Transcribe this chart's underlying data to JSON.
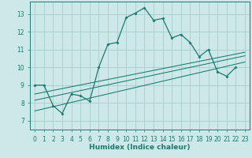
{
  "title": "",
  "xlabel": "Humidex (Indice chaleur)",
  "bg_color": "#cde8e8",
  "grid_color": "#aacccc",
  "line_color": "#1a7a6e",
  "xlim": [
    -0.5,
    23.5
  ],
  "ylim": [
    6.5,
    13.7
  ],
  "xticks": [
    0,
    1,
    2,
    3,
    4,
    5,
    6,
    7,
    8,
    9,
    10,
    11,
    12,
    13,
    14,
    15,
    16,
    17,
    18,
    19,
    20,
    21,
    22,
    23
  ],
  "yticks": [
    7,
    8,
    9,
    10,
    11,
    12,
    13
  ],
  "main_x": [
    0,
    1,
    2,
    3,
    4,
    5,
    6,
    7,
    8,
    9,
    10,
    11,
    12,
    13,
    14,
    15,
    16,
    17,
    18,
    19,
    20,
    21,
    22
  ],
  "main_y": [
    9.0,
    9.0,
    7.85,
    7.4,
    8.5,
    8.4,
    8.1,
    10.0,
    11.3,
    11.4,
    12.8,
    13.05,
    13.35,
    12.65,
    12.75,
    11.65,
    11.85,
    11.4,
    10.6,
    11.0,
    9.75,
    9.5,
    10.0
  ],
  "line2_x": [
    0,
    23
  ],
  "line2_y": [
    7.55,
    10.3
  ],
  "line3_x": [
    0,
    23
  ],
  "line3_y": [
    8.15,
    10.65
  ],
  "line4_x": [
    0,
    23
  ],
  "line4_y": [
    8.5,
    10.85
  ]
}
